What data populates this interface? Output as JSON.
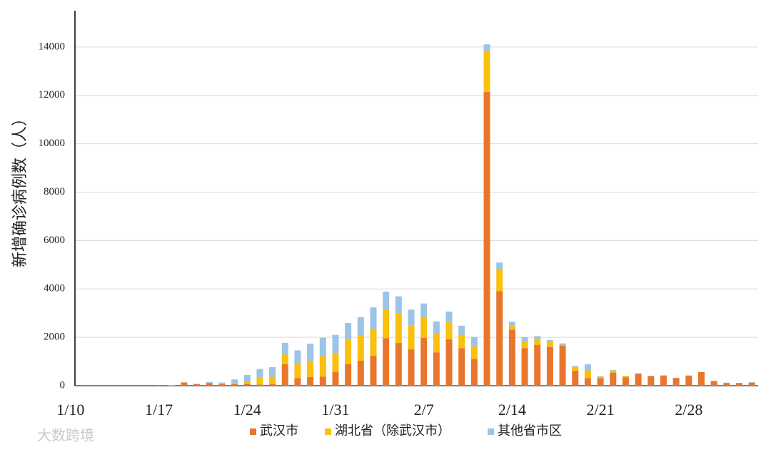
{
  "chart_data": {
    "type": "stacked_bar",
    "y_label": "新增确诊病例数（人）",
    "watermark": "大数跨境",
    "categories": [
      "1/10",
      null,
      null,
      null,
      null,
      null,
      null,
      "1/17",
      null,
      null,
      null,
      null,
      null,
      null,
      "1/24",
      null,
      null,
      null,
      null,
      null,
      null,
      "1/31",
      null,
      null,
      null,
      null,
      null,
      null,
      "2/7",
      null,
      null,
      null,
      null,
      null,
      null,
      "2/14",
      null,
      null,
      null,
      null,
      null,
      null,
      "2/21",
      null,
      null,
      null,
      null,
      null,
      null,
      "2/28",
      null,
      null,
      null,
      null,
      null
    ],
    "series": [
      {
        "name": "武汉市",
        "color": "#e8762d",
        "values": [
          0,
          0,
          0,
          0,
          0,
          0,
          0,
          4,
          17,
          136,
          70,
          105,
          62,
          70,
          77,
          46,
          80,
          892,
          315,
          356,
          378,
          576,
          894,
          1033,
          1242,
          1967,
          1766,
          1501,
          1985,
          1379,
          1920,
          1552,
          1104,
          12143,
          3910,
          2313,
          1548,
          1690,
          1600,
          1660,
          615,
          319,
          314,
          541,
          348,
          499,
          401,
          401,
          318,
          420,
          565,
          193,
          114,
          114,
          131
        ]
      },
      {
        "name": "湖北省（除武汉市）",
        "color": "#f9c10e",
        "values": [
          0,
          0,
          0,
          0,
          0,
          0,
          0,
          0,
          0,
          0,
          0,
          0,
          7,
          35,
          103,
          277,
          291,
          399,
          576,
          676,
          842,
          771,
          1027,
          1067,
          1103,
          1189,
          1213,
          984,
          856,
          768,
          698,
          551,
          534,
          1695,
          913,
          147,
          295,
          243,
          207,
          33,
          160,
          312,
          52,
          89,
          50,
          0,
          0,
          10,
          0,
          3,
          5,
          3,
          0,
          1,
          3
        ]
      },
      {
        "name": "其他省市区",
        "color": "#9dc3e6",
        "values": [
          0,
          0,
          0,
          0,
          0,
          0,
          0,
          0,
          0,
          0,
          7,
          44,
          62,
          154,
          264,
          365,
          398,
          480,
          568,
          705,
          762,
          755,
          669,
          729,
          890,
          731,
          715,
          658,
          558,
          509,
          444,
          375,
          377,
          270,
          267,
          181,
          165,
          115,
          79,
          56,
          45,
          258,
          31,
          18,
          11,
          9,
          5,
          22,
          9,
          4,
          3,
          6,
          11,
          4,
          5
        ]
      }
    ],
    "ylim": [
      0,
      15500
    ],
    "yticks": [
      0,
      2000,
      4000,
      6000,
      8000,
      10000,
      12000,
      14000
    ],
    "grid": true
  }
}
